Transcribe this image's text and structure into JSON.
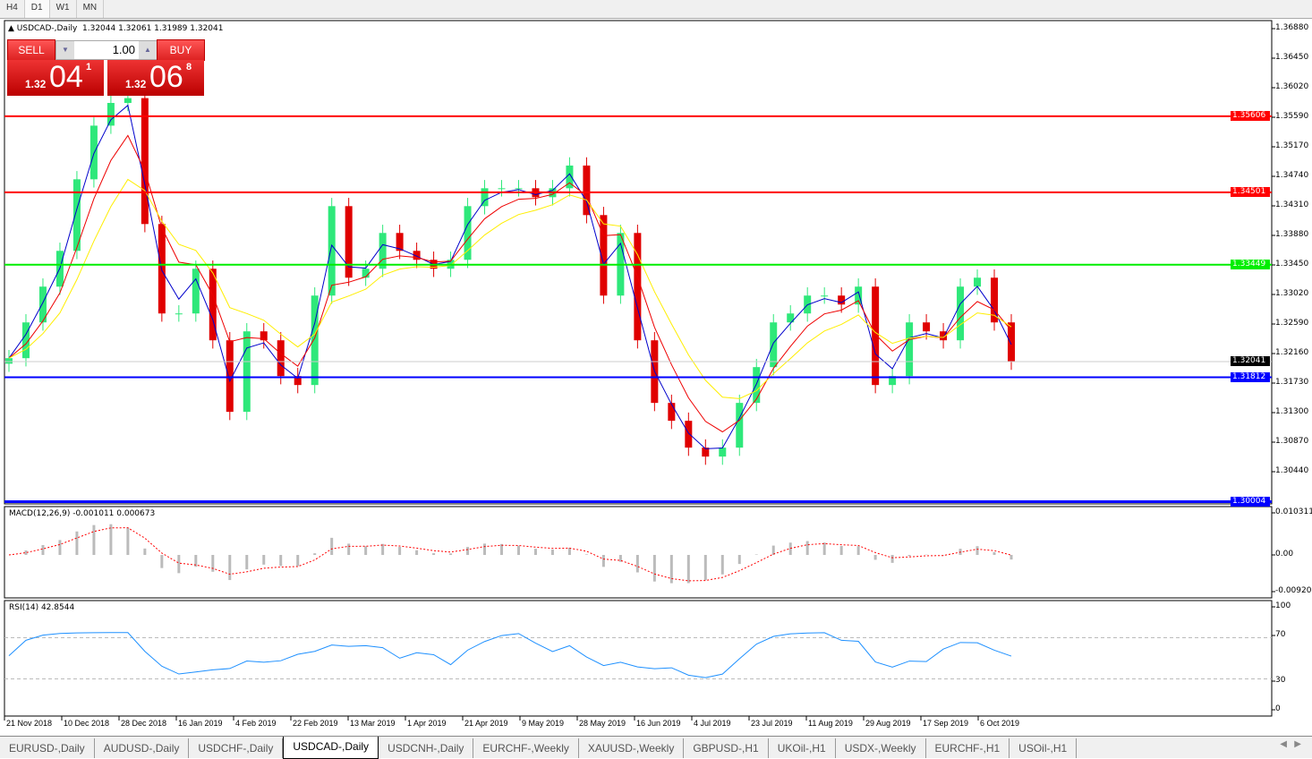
{
  "timeframes": [
    {
      "label": "H4"
    },
    {
      "label": "D1",
      "active": true
    },
    {
      "label": "W1"
    },
    {
      "label": "MN"
    }
  ],
  "chart": {
    "title": "USDCAD-,Daily",
    "ohlc": "1.32044 1.32061 1.31989 1.32041"
  },
  "trade_panel": {
    "sell_label": "SELL",
    "buy_label": "BUY",
    "lot": "1.00",
    "sell_big": "1.32",
    "sell_mid": "04",
    "sell_sup": "1",
    "buy_big": "1.32",
    "buy_mid": "06",
    "buy_sup": "8"
  },
  "price_axis": [
    "1.36880",
    "1.36450",
    "1.36020",
    "1.35590",
    "1.35170",
    "1.34740",
    "1.34310",
    "1.33880",
    "1.33450",
    "1.33020",
    "1.32590",
    "1.32160",
    "1.31730",
    "1.31300",
    "1.30870",
    "1.30440"
  ],
  "levels": [
    {
      "price": 1.35606,
      "label": "1.35606",
      "color": "#ff0000"
    },
    {
      "price": 1.34501,
      "label": "1.34501",
      "color": "#ff0000"
    },
    {
      "price": 1.33449,
      "label": "1.33449",
      "color": "#00ee00"
    },
    {
      "price": 1.31812,
      "label": "1.31812",
      "color": "#0000ff"
    },
    {
      "price": 1.30004,
      "label": "1.30004",
      "color": "#0000ff"
    }
  ],
  "current_price": {
    "price": 1.32041,
    "label": "1.32041",
    "color": "#000000"
  },
  "colors": {
    "bull": "#2ee87a",
    "bear": "#e00000",
    "ma_fast": "#0000cc",
    "ma_mid": "#ee0000",
    "ma_slow": "#ffee00",
    "macd_hist": "#bbbbbb",
    "macd_signal": "#ff0000",
    "rsi": "#1e90ff"
  },
  "macd": {
    "label": "MACD(12,26,9) -0.001011 0.000673",
    "axis": [
      "0.010311",
      "0.00",
      "-0.009203"
    ]
  },
  "rsi": {
    "label": "RSI(14) 42.8544",
    "axis": [
      "100",
      "70",
      "30",
      "0"
    ]
  },
  "date_axis": [
    "21 Nov 2018",
    "10 Dec 2018",
    "28 Dec 2018",
    "16 Jan 2019",
    "4 Feb 2019",
    "22 Feb 2019",
    "13 Mar 2019",
    "1 Apr 2019",
    "21 Apr 2019",
    "9 May 2019",
    "28 May 2019",
    "16 Jun 2019",
    "4 Jul 2019",
    "23 Jul 2019",
    "11 Aug 2019",
    "29 Aug 2019",
    "17 Sep 2019",
    "6 Oct 2019"
  ],
  "chart_data": {
    "type": "candlestick",
    "symbol": "USDCAD",
    "timeframe": "Daily",
    "ylim": [
      1.3,
      1.3688
    ],
    "closes_approx": [
      1.3209,
      1.3261,
      1.3313,
      1.3365,
      1.3469,
      1.3547,
      1.358,
      1.3587,
      1.3404,
      1.3274,
      1.3274,
      1.3339,
      1.3235,
      1.3131,
      1.3248,
      1.3235,
      1.3183,
      1.317,
      1.33,
      1.343,
      1.3326,
      1.3339,
      1.3391,
      1.3365,
      1.3352,
      1.3339,
      1.3352,
      1.343,
      1.3456,
      1.3456,
      1.3456,
      1.3443,
      1.3456,
      1.3489,
      1.3417,
      1.33,
      1.3391,
      1.3235,
      1.3144,
      1.3118,
      1.3079,
      1.3066,
      1.3079,
      1.3144,
      1.3196,
      1.3261,
      1.3274,
      1.33,
      1.33,
      1.3287,
      1.3313,
      1.317,
      1.3183,
      1.3261,
      1.3248,
      1.3235,
      1.3313,
      1.3326,
      1.3261,
      1.3204
    ]
  },
  "tabs": [
    {
      "label": "EURUSD-,Daily"
    },
    {
      "label": "AUDUSD-,Daily"
    },
    {
      "label": "USDCHF-,Daily"
    },
    {
      "label": "USDCAD-,Daily",
      "active": true
    },
    {
      "label": "USDCNH-,Daily"
    },
    {
      "label": "EURCHF-,Weekly"
    },
    {
      "label": "XAUUSD-,Weekly"
    },
    {
      "label": "GBPUSD-,H1"
    },
    {
      "label": "UKOil-,H1"
    },
    {
      "label": "USDX-,Weekly"
    },
    {
      "label": "EURCHF-,H1"
    },
    {
      "label": "USOil-,H1"
    }
  ]
}
